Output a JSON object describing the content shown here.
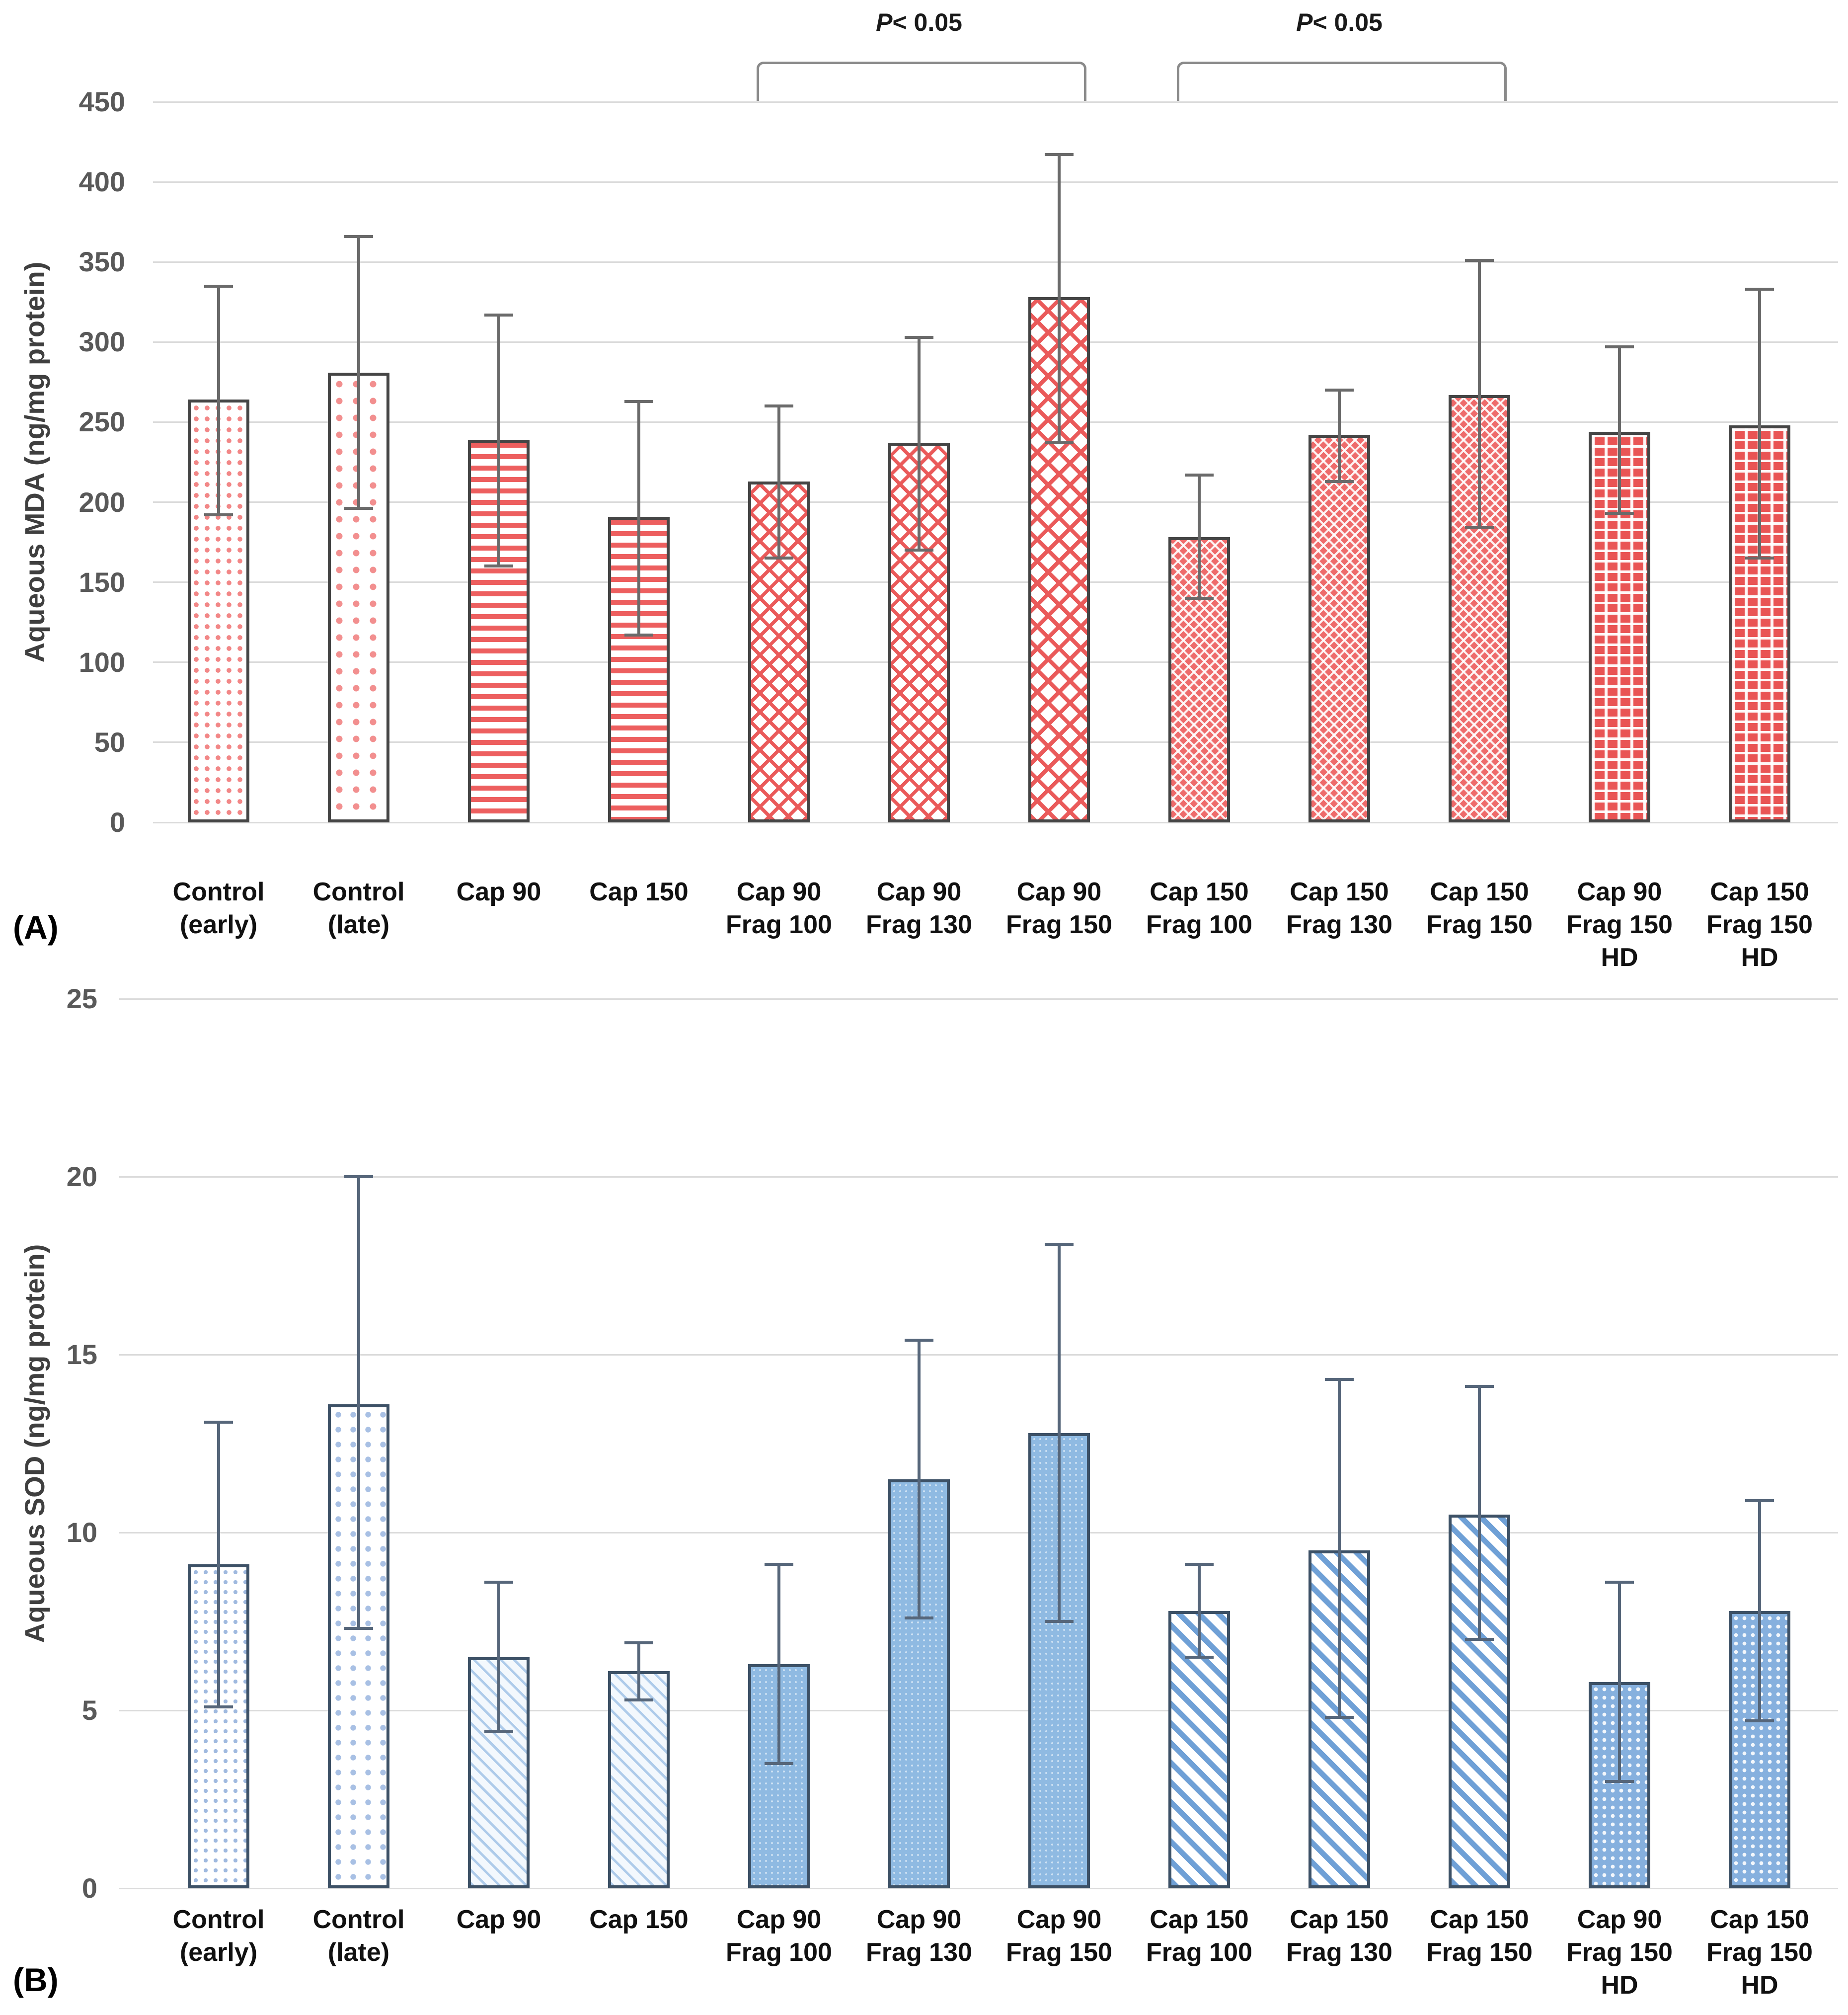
{
  "chart_data": [
    {
      "type": "bar",
      "panel_label": "(A)",
      "title": "",
      "xlabel": "",
      "ylabel": "Aqueous MDA (ng/mg protein)",
      "ylim": [
        0,
        450
      ],
      "yticks": [
        450,
        400,
        350,
        300,
        250,
        200,
        150,
        100,
        50,
        0
      ],
      "grid": true,
      "legend": "none",
      "bar_color_theme": "#ED5F5F",
      "categories": [
        "Control\n(early)",
        "Control\n(late)",
        "Cap 90",
        "Cap 150",
        "Cap 90\nFrag 100",
        "Cap 90\nFrag 130",
        "Cap 90\nFrag 150",
        "Cap 150\nFrag 100",
        "Cap 150\nFrag 130",
        "Cap 150\nFrag 150",
        "Cap 90\nFrag 150\nHD",
        "Cap 150\nFrag 150\nHD"
      ],
      "values": [
        264,
        281,
        239,
        191,
        213,
        237,
        328,
        178,
        242,
        267,
        244,
        248
      ],
      "err_low": [
        192,
        196,
        160,
        117,
        165,
        170,
        237,
        140,
        213,
        184,
        193,
        165
      ],
      "err_high": [
        335,
        366,
        317,
        263,
        260,
        303,
        417,
        217,
        270,
        351,
        297,
        333
      ],
      "patterns": [
        "dots-dense-r",
        "dots-sparse-r",
        "hlines-r",
        "hlines-r",
        "lattice-r",
        "lattice-r",
        "lattice-lg-r",
        "herring-r",
        "herring-r",
        "herring-r",
        "brick-r",
        "brick-r"
      ],
      "annotations": [
        {
          "label": "P< 0.05",
          "from": 4,
          "to": 6
        },
        {
          "label": "P< 0.05",
          "from": 7,
          "to": 9
        }
      ]
    },
    {
      "type": "bar",
      "panel_label": "(B)",
      "title": "",
      "xlabel": "",
      "ylabel": "Aqueous SOD (ng/mg protein)",
      "ylim": [
        0,
        25
      ],
      "yticks": [
        25,
        20,
        15,
        10,
        5,
        0
      ],
      "grid": true,
      "legend": "none",
      "bar_color_theme": "#5B9BD5",
      "categories": [
        "Control\n(early)",
        "Control\n(late)",
        "Cap 90",
        "Cap 150",
        "Cap 90\nFrag 100",
        "Cap 90\nFrag 130",
        "Cap 90\nFrag 150",
        "Cap 150\nFrag 100",
        "Cap 150\nFrag 130",
        "Cap 150\nFrag 150",
        "Cap 90\nFrag 150\nHD",
        "Cap 150\nFrag 150\nHD"
      ],
      "values": [
        9.1,
        13.6,
        6.5,
        6.1,
        6.3,
        11.5,
        12.8,
        7.8,
        9.5,
        10.5,
        5.8,
        7.8
      ],
      "err_low": [
        5.1,
        7.3,
        4.4,
        5.3,
        3.5,
        7.6,
        7.5,
        6.5,
        4.8,
        7.0,
        3.0,
        4.7
      ],
      "err_high": [
        13.1,
        20.0,
        8.6,
        6.9,
        9.1,
        15.4,
        18.1,
        9.1,
        14.3,
        14.1,
        8.6,
        10.9
      ],
      "patterns": [
        "dots-dense-b",
        "dots-sparse-b",
        "hatch-b",
        "hatch-b",
        "solid-b",
        "solid-b",
        "solid-b",
        "stripes-b",
        "stripes-b",
        "stripes-b",
        "check-b",
        "check-b"
      ],
      "annotations": []
    }
  ]
}
